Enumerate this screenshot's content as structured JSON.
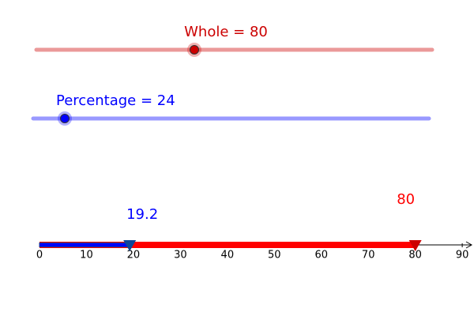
{
  "sliders": [
    {
      "label": "Whole = 80",
      "value": 80,
      "color": "#cc0000"
    },
    {
      "label": "Percentage = 24",
      "value": 24,
      "color": "#0000ff"
    }
  ],
  "number_line": {
    "xlim": [
      0,
      92
    ],
    "xticks": [
      0,
      10,
      20,
      30,
      40,
      50,
      60,
      70,
      80,
      90
    ],
    "markers": [
      {
        "value": 19.2,
        "color": "#0000ff"
      },
      {
        "value": 80,
        "color": "#ff0000"
      }
    ]
  }
}
